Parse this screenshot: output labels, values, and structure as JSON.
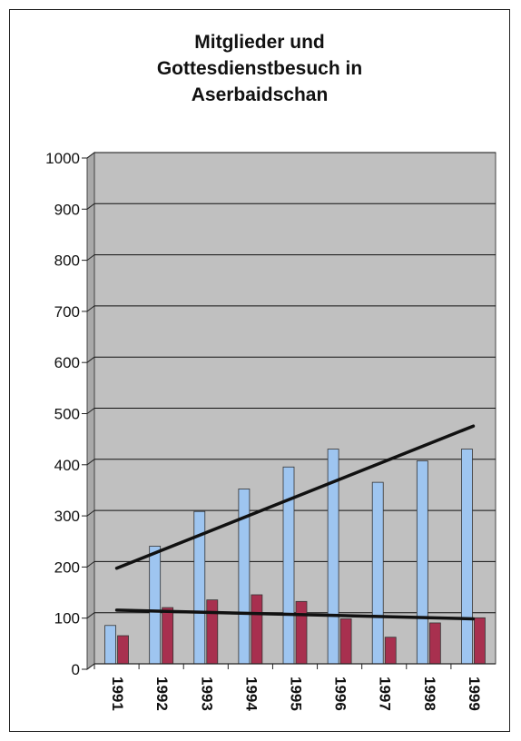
{
  "chart_data": {
    "type": "bar",
    "title_lines": [
      "Mitglieder und",
      "Gottesdienstbesuch in",
      "Aserbaidschan"
    ],
    "categories": [
      "1991",
      "1992",
      "1993",
      "1994",
      "1995",
      "1996",
      "1997",
      "1998",
      "1999"
    ],
    "series": [
      {
        "values": [
          75,
          230,
          298,
          342,
          385,
          420,
          355,
          397,
          420
        ],
        "color": "#9ec5f0"
      },
      {
        "values": [
          55,
          110,
          125,
          135,
          122,
          88,
          52,
          80,
          90
        ],
        "color": "#a8304f"
      }
    ],
    "trendlines": [
      {
        "from": [
          1991,
          187
        ],
        "to": [
          1999,
          465
        ],
        "color": "#111111"
      },
      {
        "from": [
          1991,
          105
        ],
        "to": [
          1999,
          88
        ],
        "color": "#111111"
      }
    ],
    "ylim": [
      0,
      1000
    ],
    "yticks": [
      0,
      100,
      200,
      300,
      400,
      500,
      600,
      700,
      800,
      900,
      1000
    ],
    "grid": true,
    "plot_background": "#c0c0c0",
    "xlabel": "",
    "ylabel": ""
  }
}
